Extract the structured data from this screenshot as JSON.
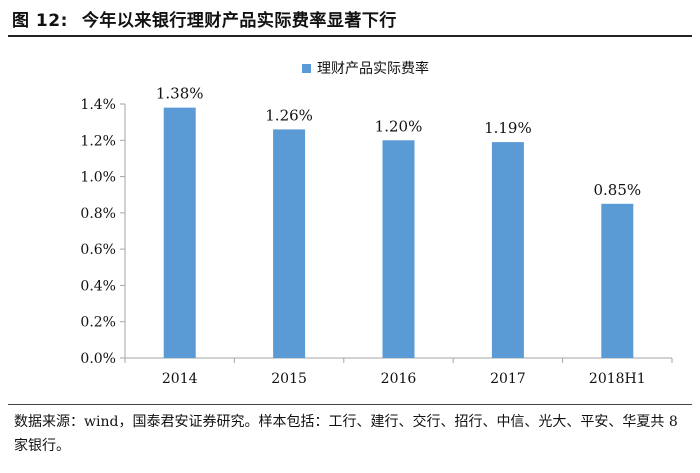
{
  "figure": {
    "number": "图 12:",
    "title": "今年以来银行理财产品实际费率显著下行"
  },
  "source_note": "数据来源：wind，国泰君安证券研究。样本包括：工行、建行、交行、招行、中信、光大、平安、华夏共 8 家银行。",
  "colors": {
    "bar": "#5b9bd5",
    "axis": "#a6a6a6",
    "text": "#111111"
  },
  "chart_data": {
    "type": "bar",
    "title": "",
    "categories": [
      "2014",
      "2015",
      "2016",
      "2017",
      "2018H1"
    ],
    "series": [
      {
        "name": "理财产品实际费率",
        "values": [
          1.38,
          1.26,
          1.2,
          1.19,
          0.85
        ]
      }
    ],
    "data_labels": [
      "1.38%",
      "1.26%",
      "1.20%",
      "1.19%",
      "0.85%"
    ],
    "y_ticks": [
      "0.0%",
      "0.2%",
      "0.4%",
      "0.6%",
      "0.8%",
      "1.0%",
      "1.2%",
      "1.4%"
    ],
    "ylim": [
      0,
      1.4
    ],
    "y_step": 0.2,
    "xlabel": "",
    "ylabel": "",
    "grid": false,
    "legend_position": "top"
  }
}
